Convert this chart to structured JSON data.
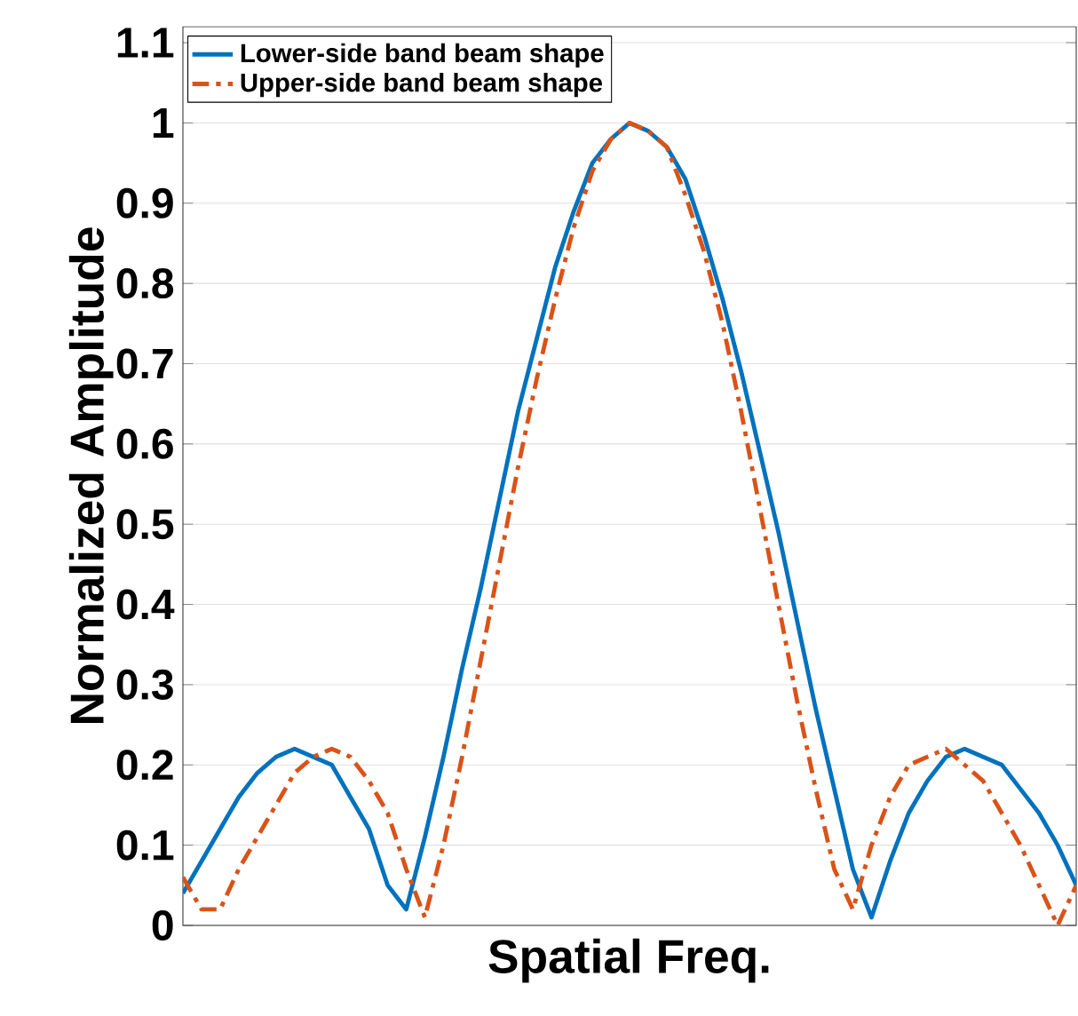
{
  "chart_data": {
    "type": "line",
    "xlabel": "Spatial Freq.",
    "ylabel": "Normalized Amplitude",
    "categories": [
      null,
      null,
      null,
      null,
      null,
      null,
      null,
      null,
      null,
      null,
      null,
      null,
      null,
      null,
      null,
      null,
      null,
      null,
      null,
      null,
      null,
      null,
      null,
      null,
      null,
      null,
      null,
      null,
      null,
      null,
      null,
      null,
      null,
      null,
      null,
      null,
      null,
      null,
      null,
      null,
      null,
      null,
      null,
      null,
      null,
      null,
      null,
      null,
      null
    ],
    "series": [
      {
        "name": "Lower-side band beam shape",
        "color": "#0072bd",
        "line_style": "solid",
        "values": [
          0.04,
          0.08,
          0.12,
          0.16,
          0.19,
          0.21,
          0.22,
          0.21,
          0.2,
          0.16,
          0.12,
          0.05,
          0.02,
          0.11,
          0.21,
          0.32,
          0.42,
          0.53,
          0.64,
          0.73,
          0.82,
          0.89,
          0.95,
          0.98,
          1.0,
          0.99,
          0.97,
          0.93,
          0.86,
          0.78,
          0.69,
          0.59,
          0.49,
          0.38,
          0.27,
          0.17,
          0.07,
          0.01,
          0.08,
          0.14,
          0.18,
          0.21,
          0.22,
          0.21,
          0.2,
          0.17,
          0.14,
          0.1,
          0.05
        ]
      },
      {
        "name": "Upper-side band beam shape",
        "color": "#d95319",
        "line_style": "dashdot",
        "values": [
          0.06,
          0.02,
          0.02,
          0.07,
          0.11,
          0.15,
          0.19,
          0.21,
          0.22,
          0.21,
          0.18,
          0.14,
          0.07,
          0.01,
          0.1,
          0.21,
          0.33,
          0.45,
          0.57,
          0.68,
          0.78,
          0.87,
          0.94,
          0.98,
          1.0,
          0.99,
          0.97,
          0.91,
          0.84,
          0.75,
          0.64,
          0.52,
          0.4,
          0.28,
          0.17,
          0.07,
          0.02,
          0.1,
          0.16,
          0.2,
          0.21,
          0.22,
          0.2,
          0.18,
          0.14,
          0.1,
          0.05,
          0.0,
          0.05
        ]
      }
    ],
    "ylim": [
      0,
      1.12
    ],
    "yticks": [
      0,
      0.1,
      0.2,
      0.3,
      0.4,
      0.5,
      0.6,
      0.7,
      0.8,
      0.9,
      1,
      1.1
    ],
    "grid": "y",
    "legend": "top left",
    "tick_labels": "y"
  }
}
